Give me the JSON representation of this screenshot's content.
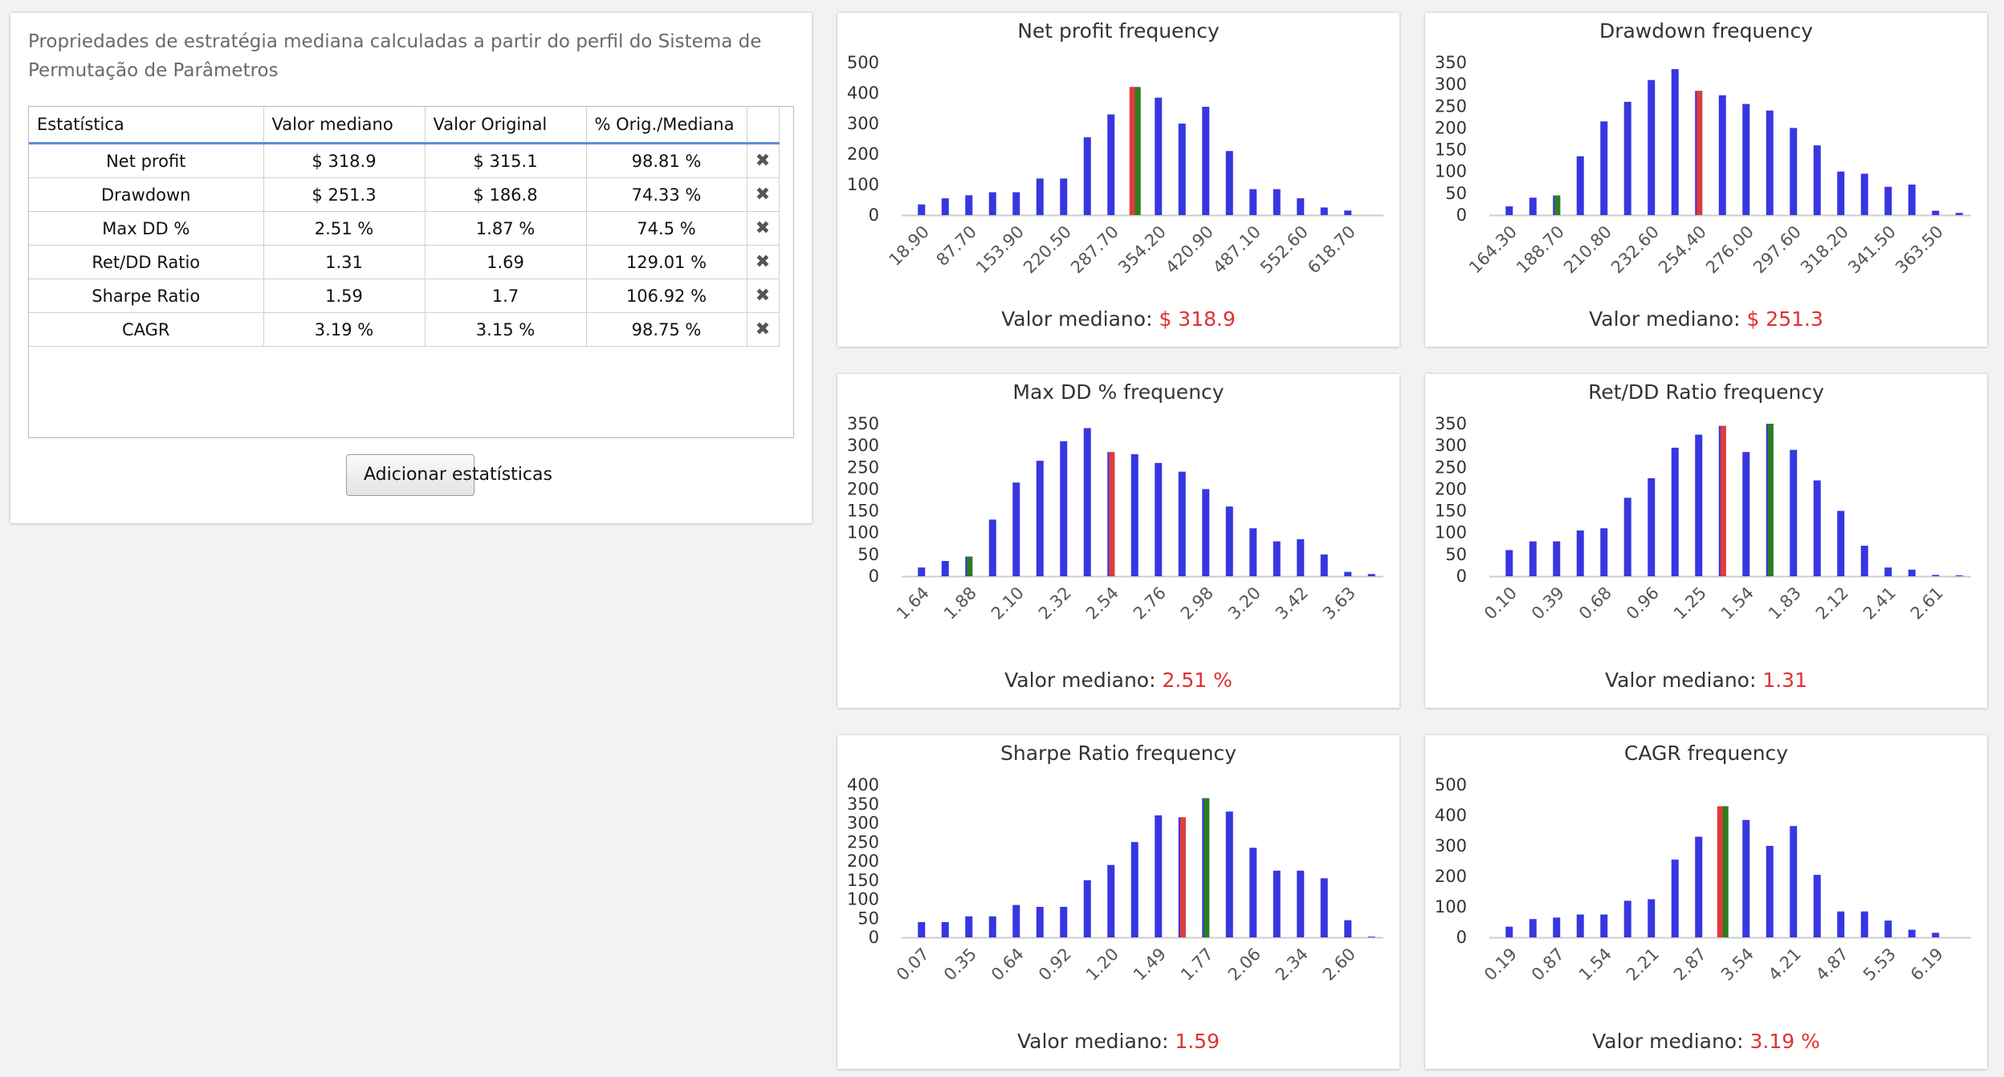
{
  "stats_panel": {
    "description": "Propriedades de estratégia mediana calculadas a partir do perfil do Sistema de Permutação de Parâmetros",
    "columns": [
      "Estatística",
      "Valor mediano",
      "Valor Original",
      "% Orig./Mediana",
      ""
    ],
    "rows": [
      {
        "stat": "Net profit",
        "median": "$ 318.9",
        "original": "$ 315.1",
        "pct": "98.81 %"
      },
      {
        "stat": "Drawdown",
        "median": "$ 251.3",
        "original": "$ 186.8",
        "pct": "74.33 %"
      },
      {
        "stat": "Max DD %",
        "median": "2.51 %",
        "original": "1.87 %",
        "pct": "74.5 %"
      },
      {
        "stat": "Ret/DD Ratio",
        "median": "1.31",
        "original": "1.69",
        "pct": "129.01 %"
      },
      {
        "stat": "Sharpe Ratio",
        "median": "1.59",
        "original": "1.7",
        "pct": "106.92 %"
      },
      {
        "stat": "CAGR",
        "median": "3.19 %",
        "original": "3.15 %",
        "pct": "98.75 %"
      }
    ],
    "delete_icon": "✖",
    "add_button_label": "Adicionar estatísticas"
  },
  "median_prefix": "Valor mediano: ",
  "colors": {
    "bar": "#3737e0",
    "median": "#e03c3c",
    "original": "#2e7d1e",
    "axis": "#cccccc",
    "text": "#333333"
  },
  "chart_data": [
    {
      "type": "bar",
      "title": "Net profit frequency",
      "yticks": [
        0,
        100,
        200,
        300,
        400,
        500
      ],
      "ylim": [
        0,
        500
      ],
      "xticks": [
        "18.90",
        "87.70",
        "153.90",
        "220.50",
        "287.70",
        "354.20",
        "420.90",
        "487.10",
        "552.60",
        "618.70"
      ],
      "values": [
        35,
        55,
        65,
        75,
        75,
        120,
        120,
        255,
        330,
        420,
        385,
        300,
        355,
        210,
        85,
        85,
        55,
        25,
        15,
        0
      ],
      "median_index": 9,
      "original_index": 9,
      "median_label": "$ 318.9"
    },
    {
      "type": "bar",
      "title": "Drawdown frequency",
      "yticks": [
        0,
        50,
        100,
        150,
        200,
        250,
        300,
        350
      ],
      "ylim": [
        0,
        350
      ],
      "xticks": [
        "164.30",
        "188.70",
        "210.80",
        "232.60",
        "254.40",
        "276.00",
        "297.60",
        "318.20",
        "341.50",
        "363.50"
      ],
      "values": [
        20,
        40,
        45,
        135,
        215,
        260,
        310,
        335,
        285,
        275,
        255,
        240,
        200,
        160,
        100,
        95,
        65,
        70,
        10,
        5
      ],
      "median_index": 8,
      "original_index": 2,
      "median_label": "$ 251.3"
    },
    {
      "type": "bar",
      "title": "Max DD % frequency",
      "yticks": [
        0,
        50,
        100,
        150,
        200,
        250,
        300,
        350
      ],
      "ylim": [
        0,
        350
      ],
      "xticks": [
        "1.64",
        "1.88",
        "2.10",
        "2.32",
        "2.54",
        "2.76",
        "2.98",
        "3.20",
        "3.42",
        "3.63"
      ],
      "values": [
        20,
        35,
        45,
        130,
        215,
        265,
        310,
        340,
        285,
        280,
        260,
        240,
        200,
        160,
        110,
        80,
        85,
        50,
        10,
        5
      ],
      "median_index": 8,
      "original_index": 2,
      "median_label": "2.51 %"
    },
    {
      "type": "bar",
      "title": "Ret/DD Ratio frequency",
      "yticks": [
        0,
        50,
        100,
        150,
        200,
        250,
        300,
        350
      ],
      "ylim": [
        0,
        350
      ],
      "xticks": [
        "0.10",
        "0.39",
        "0.68",
        "0.96",
        "1.25",
        "1.54",
        "1.83",
        "2.12",
        "2.41",
        "2.61"
      ],
      "values": [
        60,
        80,
        80,
        105,
        110,
        180,
        225,
        295,
        325,
        345,
        285,
        350,
        290,
        220,
        150,
        70,
        20,
        15,
        3,
        2
      ],
      "median_index": 9,
      "original_index": 11,
      "median_label": "1.31"
    },
    {
      "type": "bar",
      "title": "Sharpe Ratio frequency",
      "yticks": [
        0,
        50,
        100,
        150,
        200,
        250,
        300,
        350,
        400
      ],
      "ylim": [
        0,
        400
      ],
      "xticks": [
        "0.07",
        "0.35",
        "0.64",
        "0.92",
        "1.20",
        "1.49",
        "1.77",
        "2.06",
        "2.34",
        "2.60"
      ],
      "values": [
        40,
        40,
        55,
        55,
        85,
        80,
        80,
        150,
        190,
        250,
        320,
        315,
        365,
        330,
        235,
        175,
        175,
        155,
        45,
        2
      ],
      "median_index": 11,
      "original_index": 12,
      "median_label": "1.59"
    },
    {
      "type": "bar",
      "title": "CAGR frequency",
      "yticks": [
        0,
        100,
        200,
        300,
        400,
        500
      ],
      "ylim": [
        0,
        500
      ],
      "xticks": [
        "0.19",
        "0.87",
        "1.54",
        "2.21",
        "2.87",
        "3.54",
        "4.21",
        "4.87",
        "5.53",
        "6.19"
      ],
      "values": [
        35,
        60,
        65,
        75,
        75,
        120,
        125,
        255,
        330,
        430,
        385,
        300,
        365,
        205,
        85,
        85,
        55,
        25,
        15,
        0
      ],
      "median_index": 9,
      "original_index": 9,
      "median_label": "3.19 %"
    }
  ]
}
